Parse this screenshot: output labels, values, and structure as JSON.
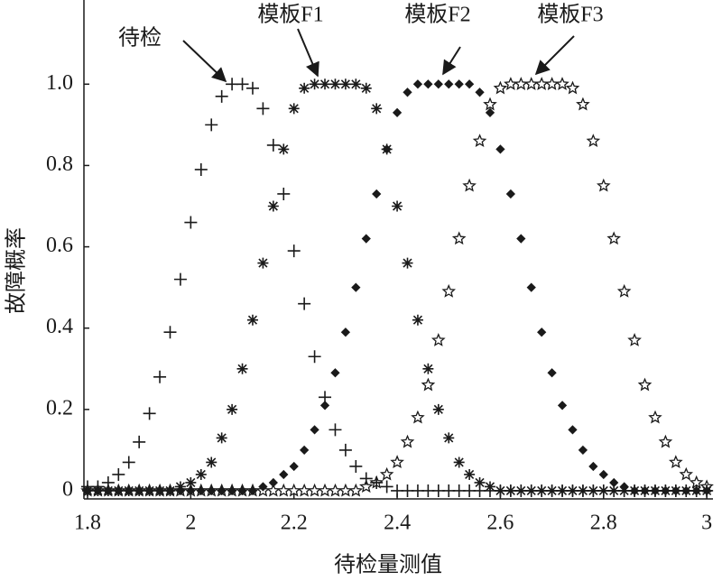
{
  "chart_data": {
    "type": "scatter",
    "xlabel": "待检量测值",
    "ylabel": "故障概率",
    "xlim": [
      1.793,
      3.012
    ],
    "ylim": [
      -0.02,
      1.207
    ],
    "xticks": [
      1.8,
      2,
      2.2,
      2.4,
      2.6,
      2.8,
      3
    ],
    "yticks": [
      0,
      0.2,
      0.4,
      0.6,
      0.8,
      {
        "value": 1,
        "label": "1.0"
      }
    ],
    "x": [
      1.8,
      1.82,
      1.84,
      1.86,
      1.88,
      1.9,
      1.92,
      1.94,
      1.96,
      1.98,
      2.0,
      2.02,
      2.04,
      2.06,
      2.08,
      2.1,
      2.12,
      2.14,
      2.16,
      2.18,
      2.2,
      2.22,
      2.24,
      2.26,
      2.28,
      2.3,
      2.32,
      2.34,
      2.36,
      2.38,
      2.4,
      2.42,
      2.44,
      2.46,
      2.48,
      2.5,
      2.52,
      2.54,
      2.56,
      2.58,
      2.6,
      2.62,
      2.64,
      2.66,
      2.68,
      2.7,
      2.72,
      2.74,
      2.76,
      2.78,
      2.8,
      2.82,
      2.84,
      2.86,
      2.88,
      2.9,
      2.92,
      2.94,
      2.96,
      2.98,
      3.0
    ],
    "series": [
      {
        "name": "待检",
        "marker": "plus",
        "color": "#1a1a1a",
        "values": [
          0.01,
          0.01,
          0.02,
          0.04,
          0.07,
          0.12,
          0.19,
          0.28,
          0.39,
          0.52,
          0.66,
          0.79,
          0.9,
          0.97,
          1,
          1,
          0.99,
          0.94,
          0.85,
          0.73,
          0.59,
          0.46,
          0.33,
          0.23,
          0.15,
          0.1,
          0.06,
          0.03,
          0.02,
          0.01,
          0,
          0,
          0,
          0,
          0,
          0,
          0,
          0,
          0,
          0,
          0,
          0,
          0,
          0,
          0,
          0,
          0,
          0,
          0,
          0,
          0,
          0,
          0,
          0,
          0,
          0,
          0,
          0,
          0,
          0,
          0
        ]
      },
      {
        "name": "模板F1",
        "marker": "asterisk",
        "color": "#1a1a1a",
        "values": [
          0,
          0,
          0,
          0,
          0,
          0,
          0,
          0,
          0,
          0.01,
          0.02,
          0.04,
          0.07,
          0.13,
          0.2,
          0.3,
          0.42,
          0.56,
          0.7,
          0.84,
          0.94,
          0.99,
          1,
          1,
          1,
          1,
          1,
          0.99,
          0.94,
          0.84,
          0.7,
          0.56,
          0.42,
          0.3,
          0.2,
          0.13,
          0.07,
          0.04,
          0.02,
          0.01,
          0,
          0,
          0,
          0,
          0,
          0,
          0,
          0,
          0,
          0,
          0,
          0,
          0,
          0,
          0,
          0,
          0,
          0,
          0,
          0,
          0
        ]
      },
      {
        "name": "模板F2",
        "marker": "diamond",
        "color": "#1a1a1a",
        "values": [
          0,
          0,
          0,
          0,
          0,
          0,
          0,
          0,
          0,
          0,
          0,
          0,
          0,
          0,
          0,
          0,
          0,
          0.01,
          0.02,
          0.04,
          0.06,
          0.1,
          0.15,
          0.21,
          0.29,
          0.39,
          0.5,
          0.62,
          0.73,
          0.84,
          0.93,
          0.98,
          1,
          1,
          1,
          1,
          1,
          1,
          0.98,
          0.93,
          0.84,
          0.73,
          0.62,
          0.5,
          0.39,
          0.29,
          0.21,
          0.15,
          0.1,
          0.06,
          0.04,
          0.02,
          0.01,
          0,
          0,
          0,
          0,
          0,
          0,
          0,
          0
        ]
      },
      {
        "name": "模板F3",
        "marker": "star",
        "color": "#1a1a1a",
        "values": [
          0,
          0,
          0,
          0,
          0,
          0,
          0,
          0,
          0,
          0,
          0,
          0,
          0,
          0,
          0,
          0,
          0,
          0,
          0,
          0,
          0,
          0,
          0,
          0,
          0,
          0,
          0,
          0.01,
          0.02,
          0.04,
          0.07,
          0.12,
          0.18,
          0.26,
          0.37,
          0.49,
          0.62,
          0.75,
          0.86,
          0.95,
          0.99,
          1,
          1,
          1,
          1,
          1,
          1,
          0.99,
          0.95,
          0.86,
          0.75,
          0.62,
          0.49,
          0.37,
          0.26,
          0.18,
          0.12,
          0.07,
          0.04,
          0.02,
          0.01
        ]
      }
    ]
  }
}
